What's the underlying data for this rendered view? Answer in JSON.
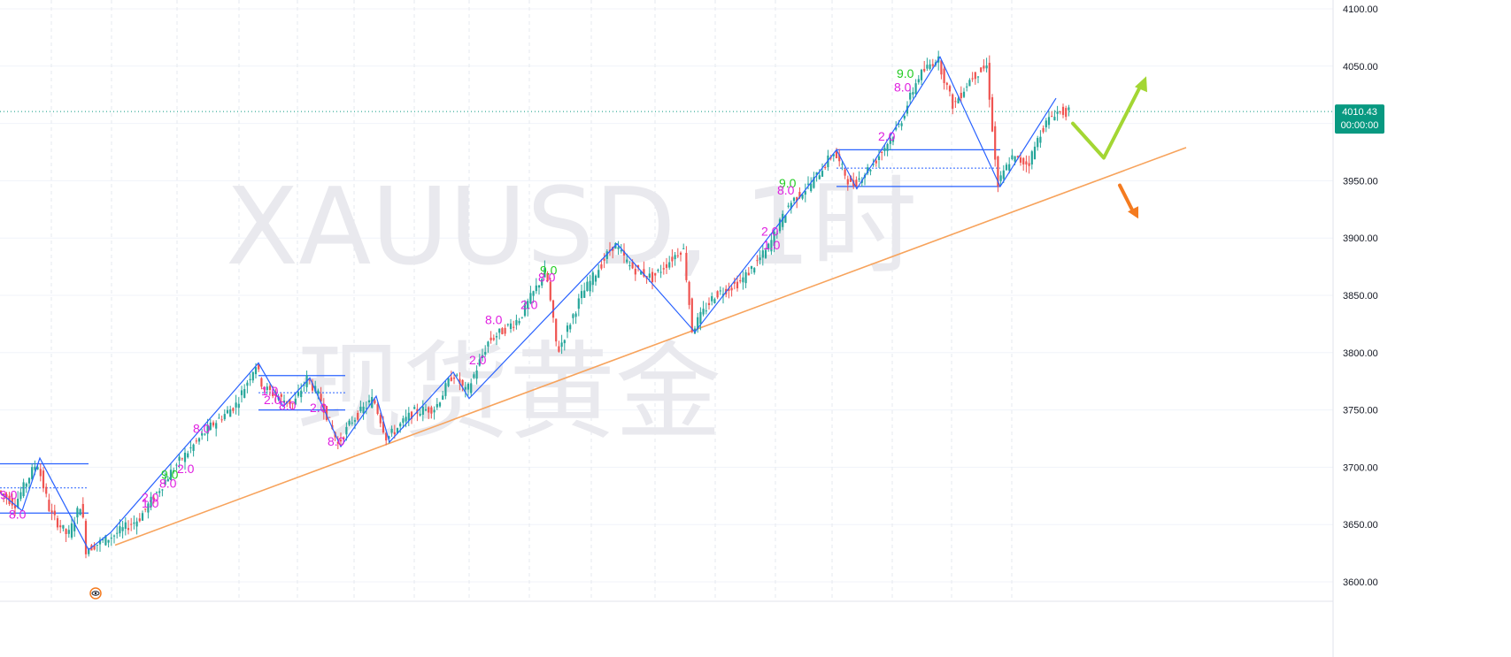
{
  "watermark": {
    "symbol": "XAUUSD, 1时",
    "name": "现货黄金"
  },
  "current_price": {
    "value": 4010.43,
    "label": "4010.43",
    "timer": "00:00:00",
    "color": "#089981"
  },
  "colors": {
    "up": "#26a69a",
    "down": "#ef5350",
    "zigzag": "#2962ff",
    "trendline": "#f7a35c",
    "green_arrow": "#a3d633",
    "orange_arrow": "#f47b20",
    "td9": "#22cc22",
    "td_magenta": "#e020e0",
    "grid": "#f0f3fa"
  },
  "icons": [
    "eye-icon"
  ],
  "chart_data": {
    "type": "candlestick",
    "symbol": "XAUUSD",
    "timeframe": "1时",
    "y_axis": {
      "min": 3600,
      "max": 4100,
      "ticks": [
        "4100.00",
        "4050.00",
        "4000.00",
        "3950.00",
        "3900.00",
        "3850.00",
        "3800.00",
        "3750.00",
        "3700.00",
        "3650.00",
        "3600.00"
      ]
    },
    "grid": true,
    "price_path": [
      [
        0,
        3680
      ],
      [
        20,
        3668
      ],
      [
        45,
        3705
      ],
      [
        60,
        3660
      ],
      [
        80,
        3640
      ],
      [
        95,
        3670
      ],
      [
        100,
        3628
      ],
      [
        130,
        3640
      ],
      [
        160,
        3655
      ],
      [
        200,
        3700
      ],
      [
        240,
        3735
      ],
      [
        270,
        3755
      ],
      [
        292,
        3790
      ],
      [
        300,
        3770
      ],
      [
        320,
        3760
      ],
      [
        335,
        3755
      ],
      [
        350,
        3778
      ],
      [
        365,
        3760
      ],
      [
        385,
        3720
      ],
      [
        400,
        3740
      ],
      [
        425,
        3760
      ],
      [
        440,
        3725
      ],
      [
        470,
        3748
      ],
      [
        495,
        3752
      ],
      [
        515,
        3782
      ],
      [
        530,
        3765
      ],
      [
        555,
        3810
      ],
      [
        590,
        3830
      ],
      [
        620,
        3872
      ],
      [
        633,
        3800
      ],
      [
        660,
        3850
      ],
      [
        697,
        3895
      ],
      [
        715,
        3875
      ],
      [
        740,
        3865
      ],
      [
        775,
        3892
      ],
      [
        785,
        3820
      ],
      [
        810,
        3850
      ],
      [
        840,
        3862
      ],
      [
        870,
        3890
      ],
      [
        895,
        3930
      ],
      [
        920,
        3948
      ],
      [
        945,
        3975
      ],
      [
        965,
        3945
      ],
      [
        990,
        3965
      ],
      [
        1020,
        4000
      ],
      [
        1040,
        4040
      ],
      [
        1062,
        4058
      ],
      [
        1080,
        4015
      ],
      [
        1100,
        4040
      ],
      [
        1118,
        4050
      ],
      [
        1130,
        3945
      ],
      [
        1145,
        3970
      ],
      [
        1165,
        3965
      ],
      [
        1180,
        3995
      ],
      [
        1195,
        4010
      ],
      [
        1210,
        4010
      ]
    ],
    "zigzag": [
      [
        0,
        3678
      ],
      [
        25,
        3662
      ],
      [
        45,
        3708
      ],
      [
        100,
        3628
      ],
      [
        125,
        3643
      ],
      [
        292,
        3791
      ],
      [
        320,
        3753
      ],
      [
        350,
        3778
      ],
      [
        385,
        3718
      ],
      [
        425,
        3762
      ],
      [
        440,
        3722
      ],
      [
        512,
        3783
      ],
      [
        530,
        3760
      ],
      [
        697,
        3895
      ],
      [
        785,
        3818
      ],
      [
        945,
        3977
      ],
      [
        968,
        3943
      ],
      [
        1062,
        4058
      ],
      [
        1130,
        3945
      ],
      [
        1193,
        4022
      ]
    ],
    "boxes": [
      {
        "x0": 0,
        "x1": 100,
        "top": 3703,
        "bottom": 3660,
        "mid": 3682
      },
      {
        "x0": 292,
        "x1": 390,
        "top": 3780,
        "bottom": 3750,
        "mid": 3765
      },
      {
        "x0": 945,
        "x1": 1130,
        "top": 3977,
        "bottom": 3945,
        "mid": 3961
      }
    ],
    "trendline": {
      "from": [
        130,
        3632
      ],
      "to": [
        1340,
        3979
      ]
    },
    "projection": {
      "green": [
        [
          1212,
          4000
        ],
        [
          1247,
          3970
        ],
        [
          1290,
          4035
        ]
      ],
      "orange": [
        [
          1265,
          3946
        ],
        [
          1283,
          3920
        ]
      ]
    },
    "td_labels": [
      {
        "text": "9.0",
        "x": 0,
        "price": 3672,
        "kind": "td_magenta"
      },
      {
        "text": "8.0",
        "x": 10,
        "price": 3655,
        "kind": "td_magenta"
      },
      {
        "text": "9.0",
        "x": 182,
        "price": 3690,
        "kind": "td9"
      },
      {
        "text": "8.0",
        "x": 180,
        "price": 3682,
        "kind": "td_magenta"
      },
      {
        "text": "2.0",
        "x": 200,
        "price": 3695,
        "kind": "td_magenta"
      },
      {
        "text": "8.0",
        "x": 218,
        "price": 3730,
        "kind": "td_magenta"
      },
      {
        "text": "2.0",
        "x": 160,
        "price": 3670,
        "kind": "td_magenta"
      },
      {
        "text": "1.0",
        "x": 160,
        "price": 3665,
        "kind": "td_magenta"
      },
      {
        "text": "1.0",
        "x": 295,
        "price": 3763,
        "kind": "td_magenta"
      },
      {
        "text": "2.0",
        "x": 298,
        "price": 3755,
        "kind": "td_magenta"
      },
      {
        "text": "8.0",
        "x": 315,
        "price": 3750,
        "kind": "td_magenta"
      },
      {
        "text": "2.0",
        "x": 350,
        "price": 3748,
        "kind": "td_magenta"
      },
      {
        "text": "8.0",
        "x": 370,
        "price": 3719,
        "kind": "td_magenta"
      },
      {
        "text": "2.0",
        "x": 530,
        "price": 3790,
        "kind": "td_magenta"
      },
      {
        "text": "8.0",
        "x": 548,
        "price": 3825,
        "kind": "td_magenta"
      },
      {
        "text": "2.0",
        "x": 588,
        "price": 3838,
        "kind": "td_magenta"
      },
      {
        "text": "9.0",
        "x": 610,
        "price": 3868,
        "kind": "td9"
      },
      {
        "text": "8.0",
        "x": 608,
        "price": 3862,
        "kind": "td_magenta"
      },
      {
        "text": "2.0",
        "x": 860,
        "price": 3902,
        "kind": "td_magenta"
      },
      {
        "text": "1.0",
        "x": 862,
        "price": 3890,
        "kind": "td_magenta"
      },
      {
        "text": "9.0",
        "x": 880,
        "price": 3944,
        "kind": "td9"
      },
      {
        "text": "8.0",
        "x": 878,
        "price": 3938,
        "kind": "td_magenta"
      },
      {
        "text": "2.0",
        "x": 992,
        "price": 3985,
        "kind": "td_magenta"
      },
      {
        "text": "9.0",
        "x": 1013,
        "price": 4040,
        "kind": "td9"
      },
      {
        "text": "8.0",
        "x": 1010,
        "price": 4028,
        "kind": "td_magenta"
      }
    ]
  }
}
